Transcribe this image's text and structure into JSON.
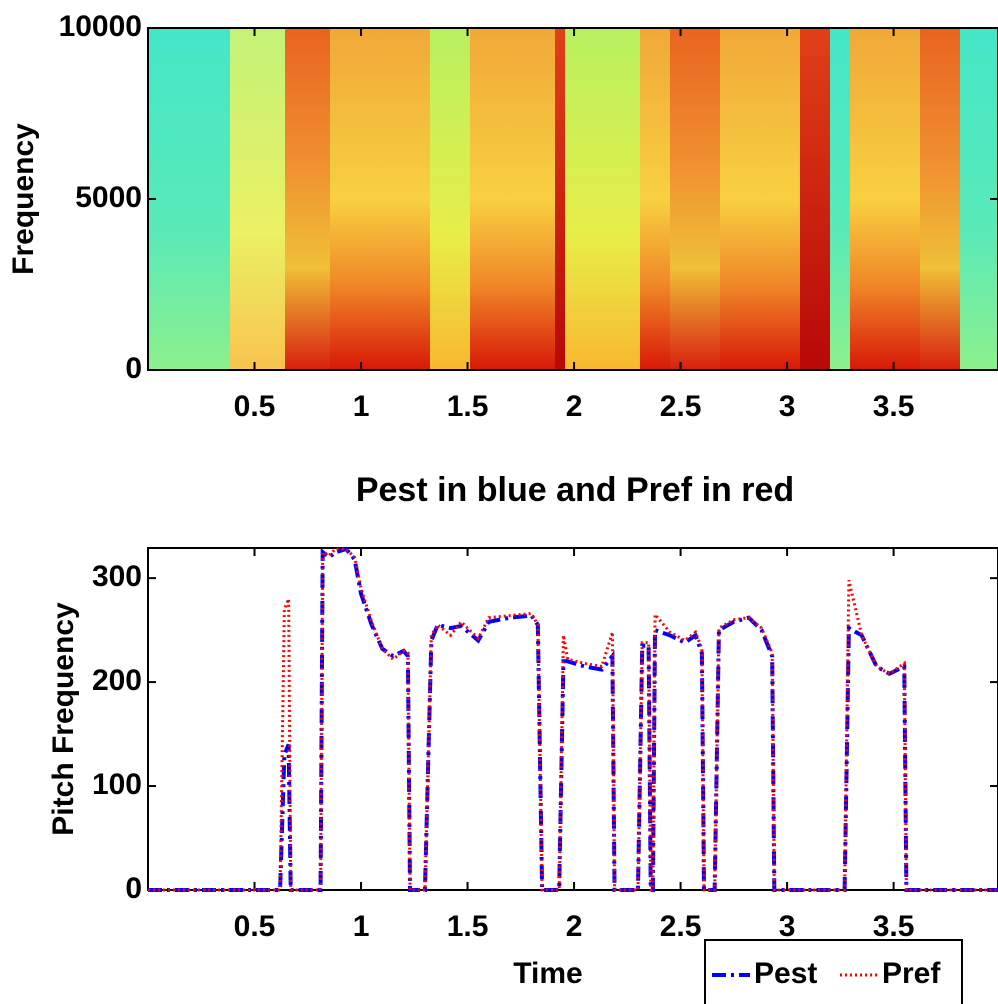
{
  "chart_data": [
    {
      "type": "spectrogram",
      "ylabel": "Frequency",
      "xlim": [
        0,
        3.99
      ],
      "ylim": [
        0,
        10000
      ],
      "xticks": [
        0.5,
        1,
        1.5,
        2,
        2.5,
        3,
        3.5
      ],
      "yticks": [
        0,
        5000,
        10000
      ]
    },
    {
      "type": "line",
      "title": "Pest in blue and Pref in red",
      "xlabel": "Time",
      "ylabel": "Pitch Frequency",
      "xlim": [
        0,
        3.99
      ],
      "ylim": [
        0,
        329
      ],
      "xticks": [
        0.5,
        1,
        1.5,
        2,
        2.5,
        3,
        3.5
      ],
      "yticks": [
        0,
        100,
        200,
        300
      ],
      "legend": "lower right",
      "x": [
        0,
        0.62,
        0.64,
        0.66,
        0.67,
        0.81,
        0.82,
        0.85,
        0.88,
        0.93,
        0.97,
        1.0,
        1.05,
        1.1,
        1.15,
        1.2,
        1.22,
        1.23,
        1.3,
        1.33,
        1.36,
        1.42,
        1.47,
        1.55,
        1.6,
        1.7,
        1.8,
        1.83,
        1.85,
        1.93,
        1.95,
        1.97,
        2.05,
        2.13,
        2.18,
        2.19,
        2.3,
        2.32,
        2.35,
        2.36,
        2.37,
        2.38,
        2.45,
        2.52,
        2.57,
        2.6,
        2.61,
        2.66,
        2.68,
        2.75,
        2.82,
        2.88,
        2.93,
        2.94,
        3.27,
        3.29,
        3.35,
        3.42,
        3.48,
        3.55,
        3.56,
        3.99
      ],
      "series": [
        {
          "name": "Pest",
          "color": "#0000ff",
          "linestyle": "dashdot",
          "values": [
            0,
            0,
            130,
            140,
            0,
            0,
            325,
            320,
            325,
            328,
            318,
            285,
            255,
            232,
            225,
            230,
            225,
            0,
            0,
            240,
            255,
            252,
            254,
            240,
            258,
            262,
            264,
            255,
            0,
            0,
            220,
            220,
            215,
            212,
            225,
            0,
            0,
            235,
            235,
            0,
            0,
            250,
            245,
            238,
            245,
            228,
            0,
            0,
            250,
            258,
            262,
            250,
            225,
            0,
            0,
            252,
            245,
            215,
            208,
            215,
            0,
            0
          ]
        },
        {
          "name": "Pref",
          "color": "#ff0000",
          "linestyle": "dotted",
          "values": [
            0,
            0,
            270,
            280,
            0,
            0,
            325,
            322,
            328,
            328,
            320,
            290,
            258,
            232,
            222,
            230,
            228,
            0,
            0,
            245,
            255,
            245,
            258,
            242,
            262,
            264,
            266,
            255,
            0,
            0,
            245,
            222,
            218,
            215,
            248,
            0,
            0,
            238,
            238,
            0,
            0,
            265,
            248,
            240,
            248,
            232,
            0,
            0,
            252,
            260,
            262,
            252,
            228,
            0,
            0,
            298,
            245,
            215,
            208,
            218,
            0,
            0
          ]
        }
      ]
    }
  ]
}
